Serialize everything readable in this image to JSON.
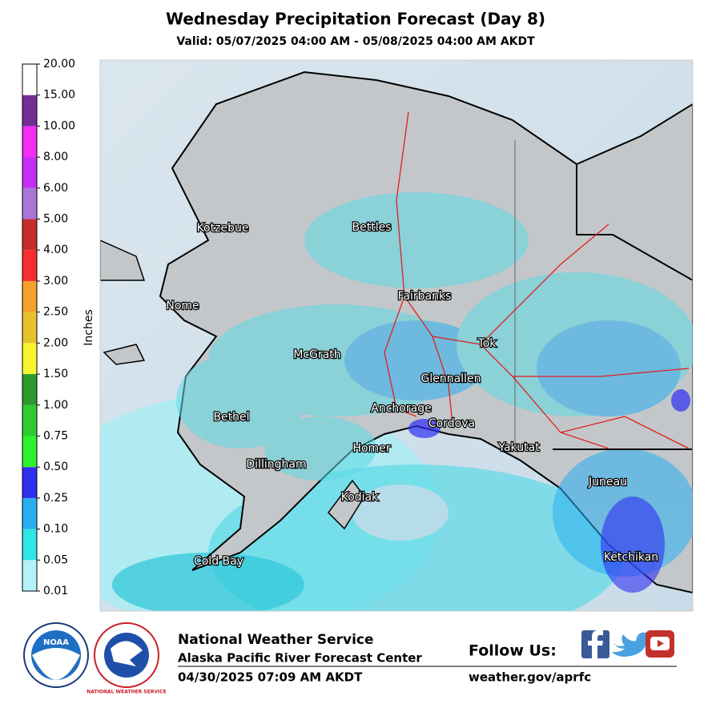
{
  "title": "Wednesday Precipitation Forecast (Day 8)",
  "subtitle": "Valid: 05/07/2025 04:00 AM - 05/08/2025 04:00 AM AKDT",
  "colorbar": {
    "label": "Inches",
    "ticks": [
      {
        "value": 0.01,
        "label": "0.01"
      },
      {
        "value": 0.05,
        "label": "0.05"
      },
      {
        "value": 0.1,
        "label": "0.10"
      },
      {
        "value": 0.25,
        "label": "0.25"
      },
      {
        "value": 0.5,
        "label": "0.50"
      },
      {
        "value": 0.75,
        "label": "0.75"
      },
      {
        "value": 1,
        "label": "1.00"
      },
      {
        "value": 1.5,
        "label": "1.50"
      },
      {
        "value": 2,
        "label": "2.00"
      },
      {
        "value": 2.5,
        "label": "2.50"
      },
      {
        "value": 3,
        "label": "3.00"
      },
      {
        "value": 4,
        "label": "4.00"
      },
      {
        "value": 5,
        "label": "5.00"
      },
      {
        "value": 6,
        "label": "6.00"
      },
      {
        "value": 8,
        "label": "8.00"
      },
      {
        "value": 10,
        "label": "10.00"
      },
      {
        "value": 15,
        "label": "15.00"
      },
      {
        "value": 20,
        "label": "20.00"
      }
    ],
    "colors": [
      "#b2f2f8",
      "#2ee6e6",
      "#2aaef2",
      "#2e2ef2",
      "#2ef22e",
      "#2ecc2e",
      "#2e9a2e",
      "#f6f62e",
      "#e6c22e",
      "#f6a02e",
      "#f62e2e",
      "#c62e2e",
      "#aa76d6",
      "#c42ef2",
      "#f22ef2",
      "#722e92",
      "#ffffff"
    ]
  },
  "map": {
    "cities": [
      "Kotzebue",
      "Bettles",
      "Nome",
      "Fairbanks",
      "McGrath",
      "Tok",
      "Glennallen",
      "Bethel",
      "Anchorage",
      "Cordova",
      "Homer",
      "Yakutat",
      "Dillingham",
      "Juneau",
      "Kodiak",
      "Ketchikan",
      "Cold Bay"
    ]
  },
  "logos": {
    "noaa": "NOAA",
    "nws": "NATIONAL WEATHER SERVICE"
  },
  "footer": {
    "agency": "National Weather Service",
    "office": "Alaska Pacific River Forecast Center",
    "issued": "04/30/2025 07:09 AM AKDT",
    "follow": "Follow Us:",
    "url": "weather.gov/aprfc"
  }
}
